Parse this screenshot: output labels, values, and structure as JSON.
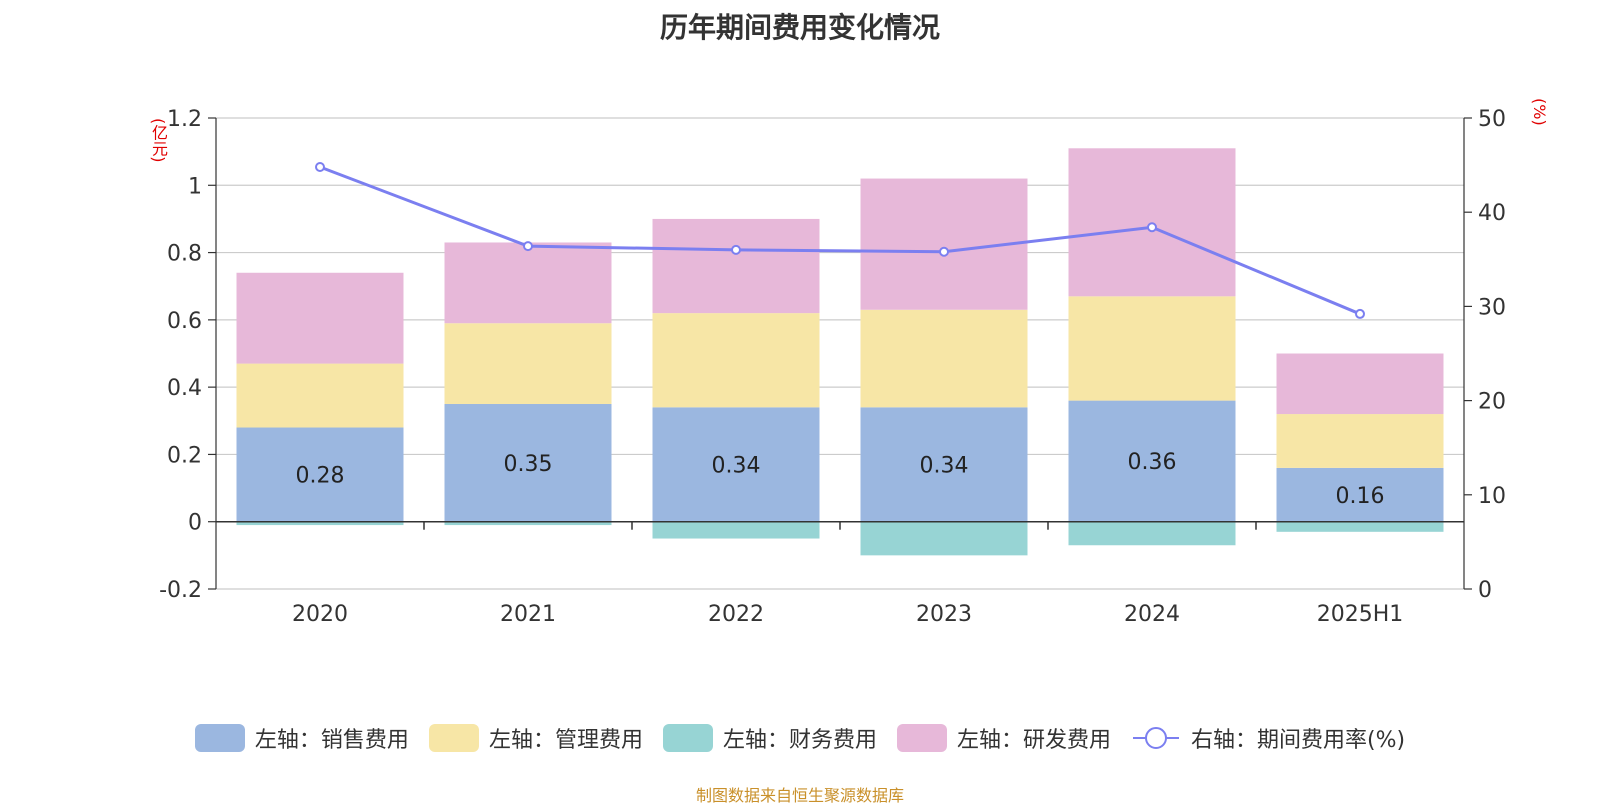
{
  "chart_data": {
    "title": "历年期间费用变化情况",
    "type": "bar",
    "stacked": true,
    "categories": [
      "2020",
      "2021",
      "2022",
      "2023",
      "2024",
      "2025H1"
    ],
    "left_axis": {
      "unit": "(亿元)",
      "ylim": [
        -0.2,
        1.2
      ],
      "ticks": [
        "-0.2",
        "0",
        "0.2",
        "0.4",
        "0.6",
        "0.8",
        "1",
        "1.2"
      ]
    },
    "right_axis": {
      "unit": "(%)",
      "ylim": [
        0,
        50
      ],
      "ticks": [
        "0",
        "10",
        "20",
        "30",
        "40",
        "50"
      ]
    },
    "series": [
      {
        "name": "左轴：销售费用",
        "type": "bar",
        "axis": "left",
        "color": "#9bb7e0",
        "values": [
          0.28,
          0.35,
          0.34,
          0.34,
          0.36,
          0.16
        ],
        "labels": [
          "0.28",
          "0.35",
          "0.34",
          "0.34",
          "0.36",
          "0.16"
        ]
      },
      {
        "name": "左轴：管理费用",
        "type": "bar",
        "axis": "left",
        "color": "#f7e6a6",
        "values": [
          0.19,
          0.24,
          0.28,
          0.29,
          0.31,
          0.16
        ]
      },
      {
        "name": "左轴：财务费用",
        "type": "bar",
        "axis": "left",
        "color": "#97d4d4",
        "values": [
          -0.01,
          -0.01,
          -0.05,
          -0.1,
          -0.07,
          -0.03
        ]
      },
      {
        "name": "左轴：研发费用",
        "type": "bar",
        "axis": "left",
        "color": "#e7b8d9",
        "values": [
          0.27,
          0.24,
          0.28,
          0.39,
          0.44,
          0.18
        ]
      },
      {
        "name": "右轴：期间费用率(%)",
        "type": "line",
        "axis": "right",
        "color": "#7b7ff0",
        "values": [
          44.8,
          36.4,
          36.0,
          35.8,
          38.4,
          29.2
        ]
      }
    ],
    "grid": true,
    "legend_position": "bottom"
  },
  "footer": "制图数据来自恒生聚源数据库"
}
